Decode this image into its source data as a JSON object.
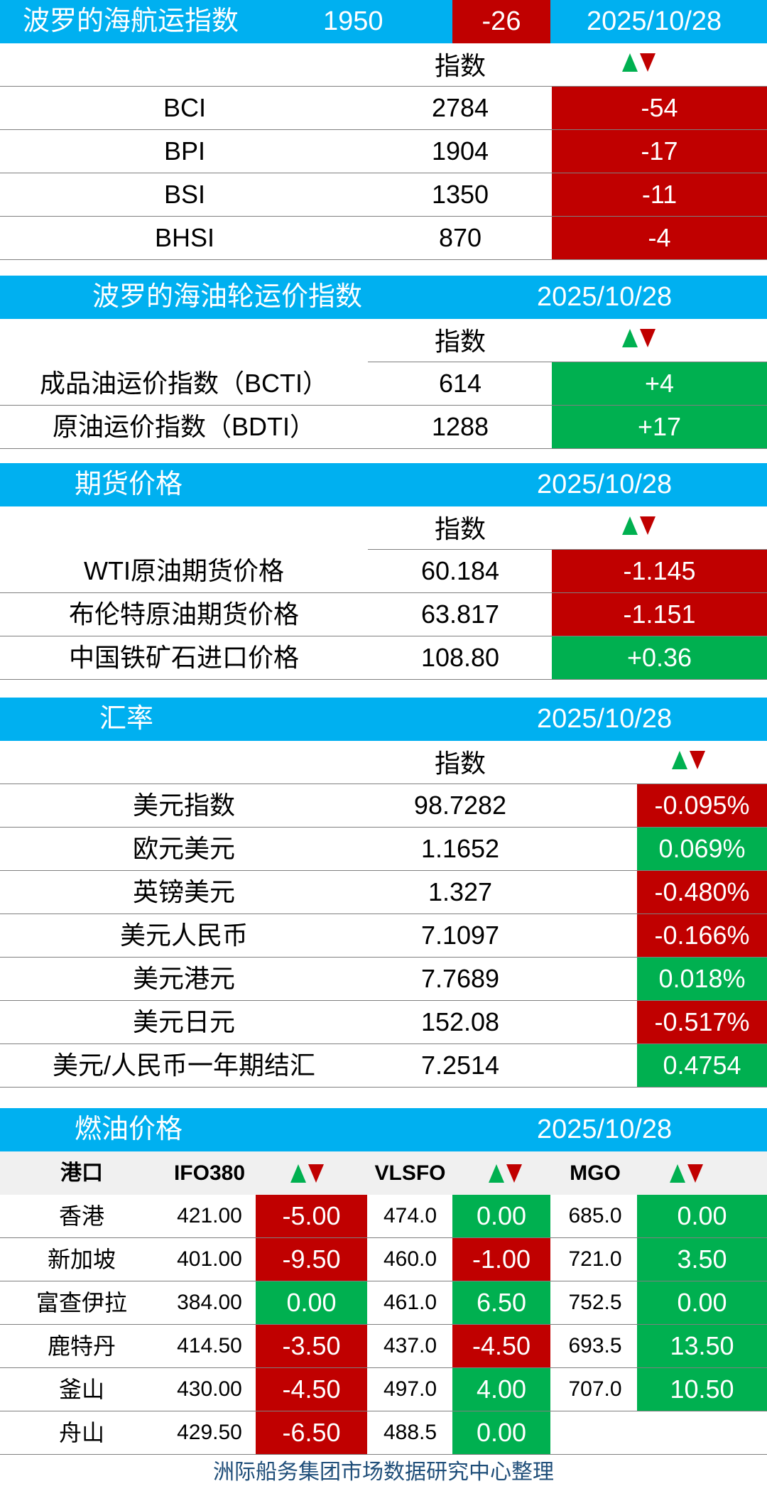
{
  "bdi": {
    "title": "波罗的海航运指数",
    "value": "1950",
    "change": "-26",
    "date": "2025/10/28",
    "col_index": "指数",
    "rows": [
      {
        "name": "BCI",
        "value": "2784",
        "change": "-54",
        "dir": "down"
      },
      {
        "name": "BPI",
        "value": "1904",
        "change": "-17",
        "dir": "down"
      },
      {
        "name": "BSI",
        "value": "1350",
        "change": "-11",
        "dir": "down"
      },
      {
        "name": "BHSI",
        "value": "870",
        "change": "-4",
        "dir": "down"
      }
    ]
  },
  "tanker": {
    "title": "波罗的海油轮运价指数",
    "date": "2025/10/28",
    "col_index": "指数",
    "rows": [
      {
        "name": "成品油运价指数（BCTI）",
        "value": "614",
        "change": "+4",
        "dir": "up"
      },
      {
        "name": "原油运价指数（BDTI）",
        "value": "1288",
        "change": "+17",
        "dir": "up"
      }
    ]
  },
  "futures": {
    "title": "期货价格",
    "date": "2025/10/28",
    "col_index": "指数",
    "rows": [
      {
        "name": "WTI原油期货价格",
        "value": "60.184",
        "change": "-1.145",
        "dir": "down"
      },
      {
        "name": "布伦特原油期货价格",
        "value": "63.817",
        "change": "-1.151",
        "dir": "down"
      },
      {
        "name": "中国铁矿石进口价格",
        "value": "108.80",
        "change": "+0.36",
        "dir": "up"
      }
    ]
  },
  "fx": {
    "title": "汇率",
    "date": "2025/10/28",
    "col_index": "指数",
    "rows": [
      {
        "name": "美元指数",
        "value": "98.7282",
        "change": "-0.095%",
        "dir": "down"
      },
      {
        "name": "欧元美元",
        "value": "1.1652",
        "change": "0.069%",
        "dir": "up"
      },
      {
        "name": "英镑美元",
        "value": "1.327",
        "change": "-0.480%",
        "dir": "down"
      },
      {
        "name": "美元人民币",
        "value": "7.1097",
        "change": "-0.166%",
        "dir": "down"
      },
      {
        "name": "美元港元",
        "value": "7.7689",
        "change": "0.018%",
        "dir": "up"
      },
      {
        "name": "美元日元",
        "value": "152.08",
        "change": "-0.517%",
        "dir": "down"
      },
      {
        "name": "美元/人民币一年期结汇",
        "value": "7.2514",
        "change": "0.4754",
        "dir": "up"
      }
    ]
  },
  "fuel": {
    "title": "燃油价格",
    "date": "2025/10/28",
    "headers": {
      "port": "港口",
      "ifo": "IFO380",
      "vlsfo": "VLSFO",
      "mgo": "MGO"
    },
    "rows": [
      {
        "port": "香港",
        "ifo": "421.00",
        "ifo_chg": "-5.00",
        "ifo_dir": "down",
        "vlsfo": "474.0",
        "vlsfo_chg": "0.00",
        "vlsfo_dir": "up",
        "mgo": "685.0",
        "mgo_chg": "0.00",
        "mgo_dir": "up"
      },
      {
        "port": "新加坡",
        "ifo": "401.00",
        "ifo_chg": "-9.50",
        "ifo_dir": "down",
        "vlsfo": "460.0",
        "vlsfo_chg": "-1.00",
        "vlsfo_dir": "down",
        "mgo": "721.0",
        "mgo_chg": "3.50",
        "mgo_dir": "up"
      },
      {
        "port": "富查伊拉",
        "ifo": "384.00",
        "ifo_chg": "0.00",
        "ifo_dir": "up",
        "vlsfo": "461.0",
        "vlsfo_chg": "6.50",
        "vlsfo_dir": "up",
        "mgo": "752.5",
        "mgo_chg": "0.00",
        "mgo_dir": "up"
      },
      {
        "port": "鹿特丹",
        "ifo": "414.50",
        "ifo_chg": "-3.50",
        "ifo_dir": "down",
        "vlsfo": "437.0",
        "vlsfo_chg": "-4.50",
        "vlsfo_dir": "down",
        "mgo": "693.5",
        "mgo_chg": "13.50",
        "mgo_dir": "up"
      },
      {
        "port": "釜山",
        "ifo": "430.00",
        "ifo_chg": "-4.50",
        "ifo_dir": "down",
        "vlsfo": "497.0",
        "vlsfo_chg": "4.00",
        "vlsfo_dir": "up",
        "mgo": "707.0",
        "mgo_chg": "10.50",
        "mgo_dir": "up"
      },
      {
        "port": "舟山",
        "ifo": "429.50",
        "ifo_chg": "-6.50",
        "ifo_dir": "down",
        "vlsfo": "488.5",
        "vlsfo_chg": "0.00",
        "vlsfo_dir": "up",
        "mgo": "",
        "mgo_chg": "",
        "mgo_dir": ""
      }
    ]
  },
  "footer": "洲际船务集团市场数据研究中心整理",
  "colors": {
    "header": "#00b0f0",
    "down": "#c00000",
    "up": "#00b050"
  }
}
